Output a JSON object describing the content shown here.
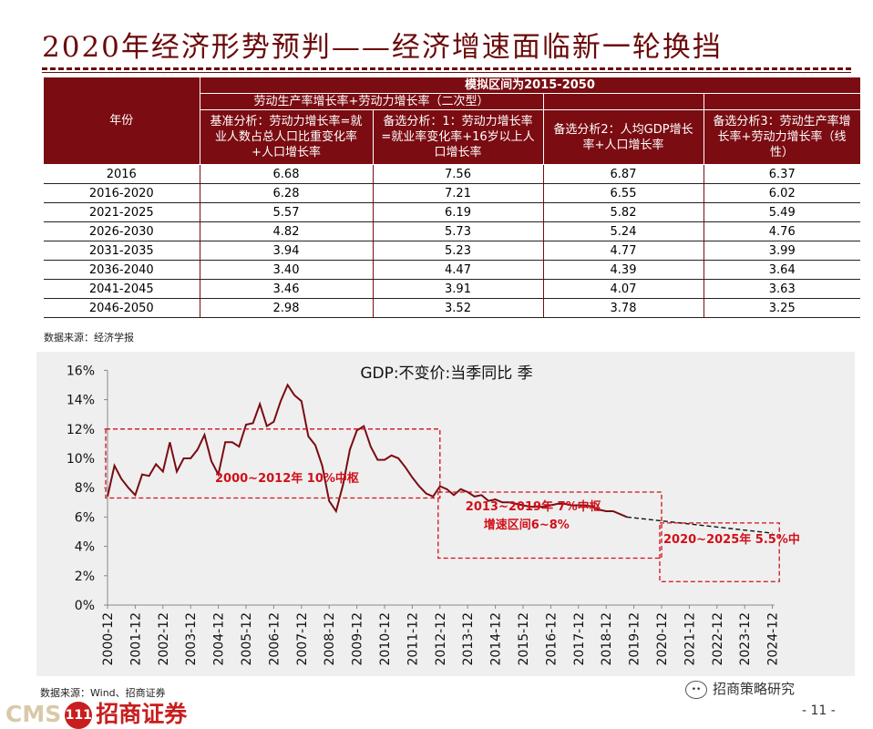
{
  "header": {
    "title": "2020年经济形势预判——经济增速面临新一轮换挡"
  },
  "table": {
    "top_header": "模拟区间为2015-2050",
    "year_header": "年份",
    "group_header": "劳动生产率增长率+劳动力增长率（二次型）",
    "columns": [
      "基准分析：劳动力增长率=就业人数占总人口比重变化率+人口增长率",
      "备选分析：1：劳动力增长率=就业率变化率+16岁以上人口增长率",
      "备选分析2：人均GDP增长率+人口增长率",
      "备选分析3：劳动生产率增长率+劳动力增长率（线性）"
    ],
    "rows": [
      {
        "year": "2016",
        "v": [
          "6.68",
          "7.56",
          "6.87",
          "6.37"
        ]
      },
      {
        "year": "2016-2020",
        "v": [
          "6.28",
          "7.21",
          "6.55",
          "6.02"
        ]
      },
      {
        "year": "2021-2025",
        "v": [
          "5.57",
          "6.19",
          "5.82",
          "5.49"
        ]
      },
      {
        "year": "2026-2030",
        "v": [
          "4.82",
          "5.73",
          "5.24",
          "4.76"
        ]
      },
      {
        "year": "2031-2035",
        "v": [
          "3.94",
          "5.23",
          "4.77",
          "3.99"
        ]
      },
      {
        "year": "2036-2040",
        "v": [
          "3.40",
          "4.47",
          "4.39",
          "3.64"
        ]
      },
      {
        "year": "2041-2045",
        "v": [
          "3.46",
          "3.91",
          "4.07",
          "3.63"
        ]
      },
      {
        "year": "2046-2050",
        "v": [
          "2.98",
          "3.52",
          "3.78",
          "3.25"
        ]
      }
    ],
    "source": "数据来源：经济学报"
  },
  "chart_data": {
    "type": "line",
    "title": "GDP:不变价:当季同比 季",
    "xlabel": "",
    "ylabel": "",
    "ylim": [
      0,
      16
    ],
    "yticks": [
      "0%",
      "2%",
      "4%",
      "6%",
      "8%",
      "10%",
      "12%",
      "14%",
      "16%"
    ],
    "xticks": [
      "2000-12",
      "2001-12",
      "2002-12",
      "2003-12",
      "2004-12",
      "2005-12",
      "2006-12",
      "2007-12",
      "2008-12",
      "2009-12",
      "2010-12",
      "2011-12",
      "2012-12",
      "2013-12",
      "2014-12",
      "2015-12",
      "2016-12",
      "2017-12",
      "2018-12",
      "2019-12",
      "2020-12",
      "2021-12",
      "2022-12",
      "2023-12",
      "2024-12"
    ],
    "series": [
      {
        "color": "#7a0c12",
        "x": [
          "2000-12",
          "2001-03",
          "2001-06",
          "2001-09",
          "2001-12",
          "2002-03",
          "2002-06",
          "2002-09",
          "2002-12",
          "2003-03",
          "2003-06",
          "2003-09",
          "2003-12",
          "2004-03",
          "2004-06",
          "2004-09",
          "2004-12",
          "2005-03",
          "2005-06",
          "2005-09",
          "2005-12",
          "2006-03",
          "2006-06",
          "2006-09",
          "2006-12",
          "2007-03",
          "2007-06",
          "2007-09",
          "2007-12",
          "2008-03",
          "2008-06",
          "2008-09",
          "2008-12",
          "2009-03",
          "2009-06",
          "2009-09",
          "2009-12",
          "2010-03",
          "2010-06",
          "2010-09",
          "2010-12",
          "2011-03",
          "2011-06",
          "2011-09",
          "2011-12",
          "2012-03",
          "2012-06",
          "2012-09",
          "2012-12",
          "2013-03",
          "2013-06",
          "2013-09",
          "2013-12",
          "2014-03",
          "2014-06",
          "2014-09",
          "2014-12",
          "2015-03",
          "2015-06",
          "2015-09",
          "2015-12",
          "2016-03",
          "2016-06",
          "2016-09",
          "2016-12",
          "2017-03",
          "2017-06",
          "2017-09",
          "2017-12",
          "2018-03",
          "2018-06",
          "2018-09",
          "2018-12",
          "2019-03",
          "2019-06",
          "2019-09"
        ],
        "values": [
          7.4,
          9.5,
          8.6,
          8.0,
          7.5,
          8.9,
          8.8,
          9.6,
          9.1,
          11.1,
          9.1,
          10.0,
          10.0,
          10.6,
          11.6,
          9.8,
          8.9,
          11.1,
          11.1,
          10.8,
          12.3,
          12.4,
          13.7,
          12.2,
          12.5,
          13.9,
          15.0,
          14.3,
          13.9,
          11.5,
          10.9,
          9.5,
          7.1,
          6.4,
          8.2,
          10.6,
          11.9,
          12.2,
          10.8,
          9.9,
          9.9,
          10.2,
          10.0,
          9.4,
          8.7,
          8.1,
          7.6,
          7.4,
          8.1,
          7.9,
          7.5,
          7.9,
          7.7,
          7.4,
          7.5,
          7.1,
          7.2,
          7.0,
          7.0,
          6.9,
          6.8,
          6.7,
          6.7,
          6.7,
          6.8,
          6.9,
          6.9,
          6.8,
          6.8,
          6.8,
          6.7,
          6.5,
          6.4,
          6.4,
          6.2,
          6.0
        ]
      },
      {
        "style": "dashed",
        "color": "#111111",
        "x": [
          "2019-09",
          "2024-12"
        ],
        "values": [
          6.0,
          4.9
        ]
      }
    ],
    "annotations": [
      {
        "text": "2000~2012年 10%中枢",
        "x_range": [
          "2000-12",
          "2012-12"
        ],
        "y_range": [
          7.3,
          12.0
        ]
      },
      {
        "text": "2013~2019年 7%中枢",
        "text2": "增速区间6~8%",
        "x_range": [
          "2012-12",
          "2020-12"
        ],
        "y_range": [
          3.2,
          7.7
        ]
      },
      {
        "text": "2020~2025年 5.5%中",
        "x_range": [
          "2020-12",
          "2025-03"
        ],
        "y_range": [
          1.6,
          5.6
        ]
      }
    ],
    "grid": false,
    "line_color": "#7a0c12",
    "annotation_color": "#d0101a",
    "source": "数据来源：Wind、招商证券"
  },
  "footer": {
    "logo_cms": "CMS",
    "logo_ring": "111",
    "logo_text": "招商证券",
    "wechat": "招商策略研究",
    "page": "- 11 -"
  }
}
